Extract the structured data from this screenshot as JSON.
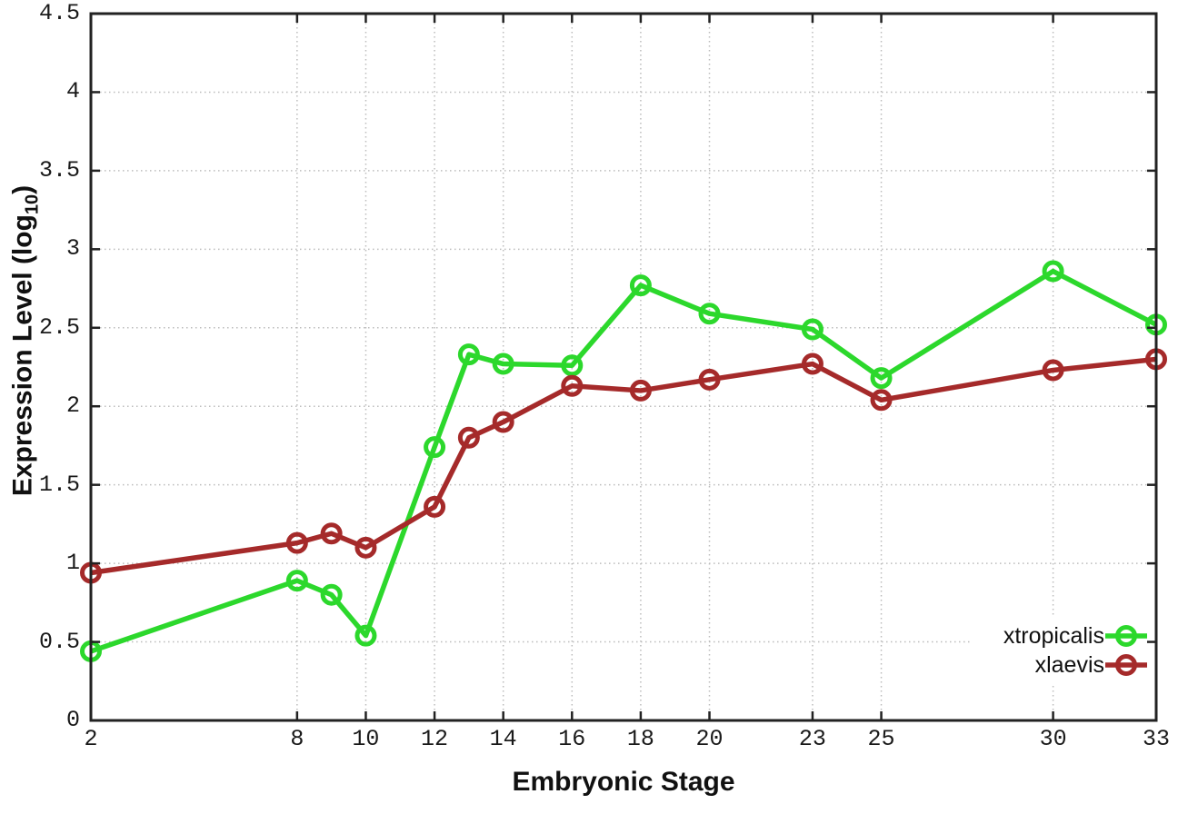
{
  "chart_data": {
    "type": "line",
    "title": "",
    "xlabel": "Embryonic Stage",
    "ylabel": "Expression Level (log10)",
    "ylabel_parts": {
      "prefix": "Expression Level (log",
      "sub": "10",
      "suffix": ")"
    },
    "x": [
      2,
      8,
      9,
      10,
      12,
      13,
      14,
      16,
      18,
      20,
      23,
      25,
      30,
      33
    ],
    "series": [
      {
        "name": "xtropicalis",
        "color": "#2cd82c",
        "values": [
          0.44,
          0.89,
          0.8,
          0.54,
          1.74,
          2.33,
          2.27,
          2.26,
          2.77,
          2.59,
          2.49,
          2.18,
          2.86,
          2.52
        ]
      },
      {
        "name": "xlaevis",
        "color": "#a52a2a",
        "values": [
          0.94,
          1.13,
          1.19,
          1.1,
          1.36,
          1.8,
          1.9,
          2.13,
          2.1,
          2.17,
          2.27,
          2.04,
          2.23,
          2.3
        ]
      }
    ],
    "xlim": [
      2,
      33
    ],
    "ylim": [
      0,
      4.5
    ],
    "x_ticks": [
      2,
      8,
      10,
      12,
      14,
      16,
      18,
      20,
      23,
      25,
      30,
      33
    ],
    "x_tick_labels": [
      "2",
      "8",
      "10",
      "12",
      "14",
      "16",
      "18",
      "20",
      "23",
      "25",
      "30",
      "33"
    ],
    "y_ticks": [
      0,
      0.5,
      1,
      1.5,
      2,
      2.5,
      3,
      3.5,
      4,
      4.5
    ],
    "y_tick_labels": [
      "0",
      "0.5",
      "1",
      "1.5",
      "2",
      "2.5",
      "3",
      "3.5",
      "4",
      "4.5"
    ],
    "grid": true,
    "marker": "open-circle",
    "legend_position": "bottom-right",
    "colors": {
      "grid": "#bcbcbc",
      "border": "#222222",
      "text": "#111111",
      "background": "#ffffff"
    }
  }
}
